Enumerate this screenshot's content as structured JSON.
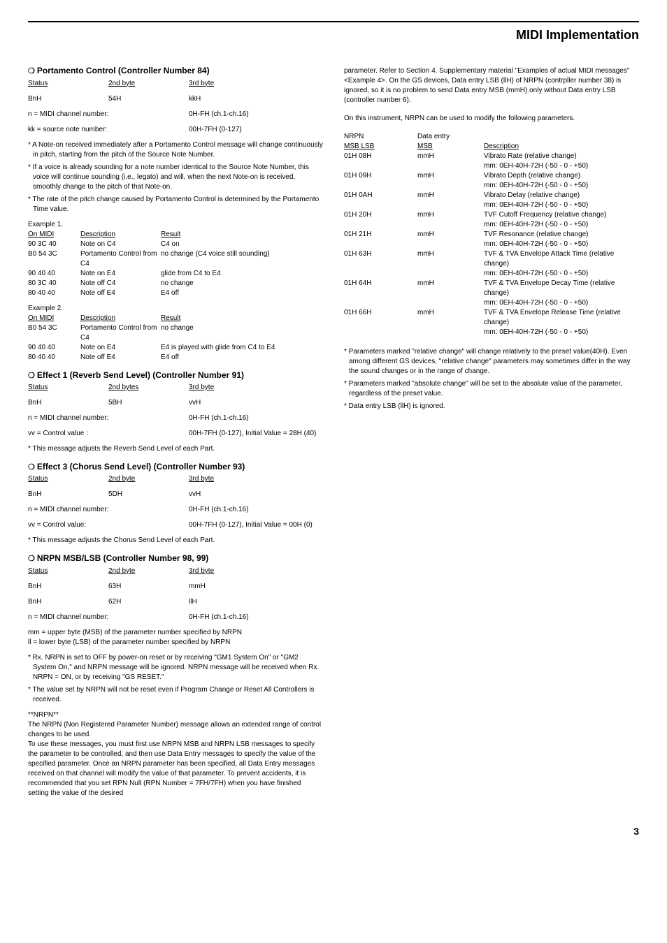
{
  "header": {
    "title": "MIDI Implementation"
  },
  "left": {
    "portamento": {
      "heading": "Portamento Control (Controller Number 84)",
      "cols": [
        "Status",
        "2nd byte",
        "3rd byte"
      ],
      "row": [
        "BnH",
        "54H",
        "kkH"
      ],
      "defs": [
        [
          "n = MIDI channel number:",
          "0H-FH (ch.1-ch.16)"
        ],
        [
          "kk = source note number:",
          "00H-7FH (0-127)"
        ]
      ],
      "notes": [
        "A Note-on received immediately after a Portamento Control message will change continuously in pitch, starting from the pitch of the Source Note Number.",
        "If a voice is already sounding for a note number identical to the Source Note Number, this voice will continue sounding (i.e., legato) and will, when the next Note-on is received, smoothly change to the pitch of that Note-on.",
        "The rate of the pitch change caused by Portamento Control is determined by the Portamento Time value."
      ],
      "ex1label": "Example 1.",
      "exCols": [
        "On MIDI",
        "Description",
        "Result"
      ],
      "ex1": [
        [
          "90 3C 40",
          "Note on C4",
          "C4 on"
        ],
        [
          "B0 54 3C",
          "Portamento Control from C4",
          "no change (C4 voice still sounding)"
        ],
        [
          "90 40 40",
          "Note on E4",
          "glide from C4 to E4"
        ],
        [
          "80 3C 40",
          "Note off C4",
          "no change"
        ],
        [
          "80 40 40",
          "Note off E4",
          "E4 off"
        ]
      ],
      "ex2label": "Example 2.",
      "ex2": [
        [
          "B0 54 3C",
          "Portamento Control from C4",
          "no change"
        ],
        [
          "90 40 40",
          "Note on E4",
          "E4 is played with glide from C4 to E4"
        ],
        [
          "80 40 40",
          "Note off E4",
          "E4 off"
        ]
      ]
    },
    "effect1": {
      "heading": "Effect 1 (Reverb Send Level) (Controller Number 91)",
      "cols": [
        "Status",
        "2nd bytes",
        "3rd byte"
      ],
      "row": [
        "BnH",
        "5BH",
        "vvH"
      ],
      "defs": [
        [
          "n = MIDI channel number:",
          "0H-FH (ch.1-ch.16)"
        ],
        [
          "vv = Control value :",
          "00H-7FH (0-127), Initial Value = 28H (40)"
        ]
      ],
      "note": "This message adjusts the Reverb Send Level of each Part."
    },
    "effect3": {
      "heading": "Effect 3 (Chorus Send Level) (Controller Number 93)",
      "cols": [
        "Status",
        "2nd byte",
        "3rd byte"
      ],
      "row": [
        "BnH",
        "5DH",
        "vvH"
      ],
      "defs": [
        [
          "n = MIDI channel number:",
          "0H-FH (ch.1-ch.16)"
        ],
        [
          "vv = Control value:",
          "00H-7FH (0-127), Initial Value = 00H (0)"
        ]
      ],
      "note": "This message adjusts the Chorus Send Level of each Part."
    },
    "nrpn": {
      "heading": "NRPN MSB/LSB (Controller Number 98, 99)",
      "cols": [
        "Status",
        "2nd byte",
        "3rd byte"
      ],
      "rows": [
        [
          "BnH",
          "63H",
          "mmH"
        ],
        [
          "BnH",
          "62H",
          "llH"
        ]
      ],
      "defs": [
        [
          "n = MIDI channel number:",
          "0H-FH (ch.1-ch.16)"
        ],
        [
          "mm = upper byte (MSB) of the parameter number specified by NRPN",
          ""
        ],
        [
          "ll = lower byte (LSB) of the parameter number specified by NRPN",
          ""
        ]
      ],
      "notes": [
        "Rx. NRPN is set to OFF by power-on reset or by receiving \"GM1 System On\" or \"GM2 System On,\" and NRPN message will be ignored. NRPN message will be received when Rx. NRPN = ON, or by receiving \"GS RESET.\"",
        "The value set by NRPN will not be reset even if Program Change or Reset All Controllers is received."
      ],
      "nrpnTitle": "**NRPN**",
      "nrpnText1": "The NRPN (Non Registered Parameter Number) message allows an extended range of control changes to be used.",
      "nrpnText2": "To use these messages, you must first use NRPN MSB and NRPN LSB messages to specify the parameter to be controlled, and then use Data Entry messages to specify the value of the specified parameter. Once an NRPN parameter has been specified, all Data Entry messages received on that channel will modify the value of that parameter. To prevent accidents, it is recommended that you set RPN Null (RPN Number = 7FH/7FH) when you have finished setting the value of the desired"
    }
  },
  "right": {
    "contText": "parameter. Refer to Section 4. Supplementary material \"Examples of actual MIDI messages\" <Example 4>. On the GS devices, Data entry LSB (llH) of NRPN (contrpller number 38) is ignored, so it is no problem to send Data entry MSB (mmH) only without Data entry LSB (controller number 6).",
    "introText": "On this instrument, NRPN can be used to modify the following parameters.",
    "nrpnCols": [
      "NRPN",
      "Data entry",
      ""
    ],
    "nrpnCols2": [
      "MSB LSB",
      "MSB",
      "Description"
    ],
    "nrpnTable": [
      [
        "01H 08H",
        "mmH",
        "Vibrato Rate (relative change)"
      ],
      [
        "",
        "",
        "mm: 0EH-40H-72H (-50 - 0 - +50)"
      ],
      [
        "01H 09H",
        "mmH",
        "Vibrato Depth (relative change)"
      ],
      [
        "",
        "",
        "mm: 0EH-40H-72H (-50 - 0 - +50)"
      ],
      [
        "01H 0AH",
        "mmH",
        "Vibrato Delay (relative change)"
      ],
      [
        "",
        "",
        "mm: 0EH-40H-72H (-50 - 0 - +50)"
      ],
      [
        "01H 20H",
        "mmH",
        "TVF Cutoff Frequency (relative change)"
      ],
      [
        "",
        "",
        "mm: 0EH-40H-72H (-50 - 0 - +50)"
      ],
      [
        "01H 21H",
        "mmH",
        "TVF Resonance (relative change)"
      ],
      [
        "",
        "",
        "mm: 0EH-40H-72H (-50 - 0 - +50)"
      ],
      [
        "01H 63H",
        "mmH",
        "TVF & TVA Envelope Attack Time (relative change)"
      ],
      [
        "",
        "",
        "mm: 0EH-40H-72H (-50 - 0 - +50)"
      ],
      [
        "01H 64H",
        "mmH",
        "TVF & TVA Envelope Decay Time (relative change)"
      ],
      [
        "",
        "",
        "mm: 0EH-40H-72H (-50 - 0 - +50)"
      ],
      [
        "01H 66H",
        "mmH",
        "TVF & TVA Envelope Release Time (relative change)"
      ],
      [
        "",
        "",
        "mm: 0EH-40H-72H (-50 - 0 - +50)"
      ]
    ],
    "endNotes": [
      "Parameters marked \"relative change\" will change relatively to the preset value(40H). Even among different GS devices, \"relative change\" parameters may sometimes differ in the way the sound changes or in the range of change.",
      "Parameters marked \"absolute change\" will be set to the absolute value of the parameter, regardless of the preset value.",
      "Data entry LSB (llH) is ignored."
    ]
  },
  "pageNumber": "3"
}
